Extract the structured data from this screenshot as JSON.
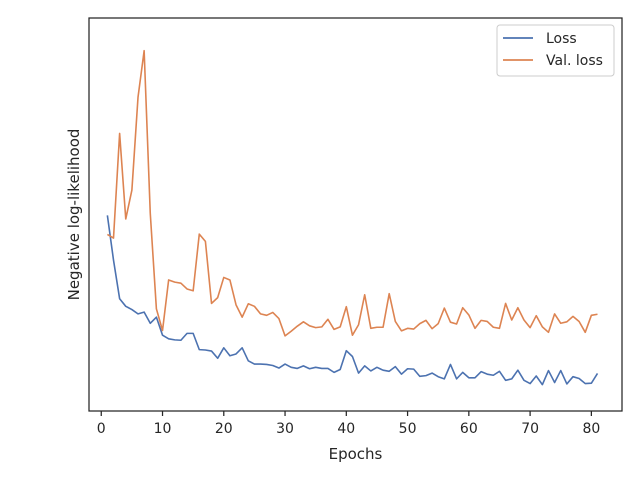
{
  "chart_data": {
    "type": "line",
    "title": "",
    "xlabel": "Epochs",
    "ylabel": "Negative log-likelihood",
    "xlim": [
      -2,
      85
    ],
    "ylim": [
      0,
      1
    ],
    "xticks": [
      0,
      10,
      20,
      30,
      40,
      50,
      60,
      70,
      80
    ],
    "yticks_shown": false,
    "grid": false,
    "legend_position": "top-right",
    "series": [
      {
        "name": "Loss",
        "color": "#4c72b0",
        "x": [
          1,
          2,
          3,
          4,
          5,
          6,
          7,
          8,
          9,
          10,
          11,
          12,
          13,
          14,
          15,
          16,
          17,
          18,
          19,
          20,
          21,
          22,
          23,
          24,
          25,
          26,
          27,
          28,
          29,
          30,
          31,
          32,
          33,
          34,
          35,
          36,
          37,
          38,
          39,
          40,
          41,
          42,
          43,
          44,
          45,
          46,
          47,
          48,
          49,
          50,
          51,
          52,
          53,
          54,
          55,
          56,
          57,
          58,
          59,
          60,
          61,
          62,
          63,
          64,
          65,
          66,
          67,
          68,
          69,
          70,
          71,
          72,
          73,
          74,
          75,
          76,
          77,
          78,
          79,
          80,
          81
        ],
        "y": [
          0.506,
          0.382,
          0.275,
          0.254,
          0.245,
          0.233,
          0.238,
          0.207,
          0.224,
          0.174,
          0.164,
          0.161,
          0.16,
          0.179,
          0.179,
          0.134,
          0.133,
          0.13,
          0.11,
          0.139,
          0.117,
          0.122,
          0.139,
          0.103,
          0.094,
          0.094,
          0.093,
          0.09,
          0.083,
          0.094,
          0.085,
          0.082,
          0.089,
          0.081,
          0.085,
          0.082,
          0.082,
          0.071,
          0.079,
          0.131,
          0.115,
          0.069,
          0.089,
          0.075,
          0.085,
          0.077,
          0.074,
          0.087,
          0.066,
          0.081,
          0.08,
          0.06,
          0.062,
          0.069,
          0.059,
          0.053,
          0.093,
          0.053,
          0.071,
          0.056,
          0.056,
          0.073,
          0.066,
          0.063,
          0.074,
          0.049,
          0.053,
          0.077,
          0.049,
          0.04,
          0.061,
          0.037,
          0.076,
          0.043,
          0.076,
          0.039,
          0.059,
          0.054,
          0.04,
          0.041,
          0.068
        ]
      },
      {
        "name": "Val. loss",
        "color": "#dd8452",
        "x": [
          1,
          2,
          3,
          4,
          5,
          6,
          7,
          8,
          9,
          10,
          11,
          12,
          13,
          14,
          15,
          16,
          17,
          18,
          19,
          20,
          21,
          22,
          23,
          24,
          25,
          26,
          27,
          28,
          29,
          30,
          31,
          32,
          33,
          34,
          35,
          36,
          37,
          38,
          39,
          40,
          41,
          42,
          43,
          44,
          45,
          46,
          47,
          48,
          49,
          50,
          51,
          52,
          53,
          54,
          55,
          56,
          57,
          58,
          59,
          60,
          61,
          62,
          63,
          64,
          65,
          66,
          67,
          68,
          69,
          70,
          71,
          72,
          73,
          74,
          75,
          76,
          77,
          78,
          79,
          80,
          81
        ],
        "y": [
          0.453,
          0.443,
          0.733,
          0.496,
          0.576,
          0.833,
          0.962,
          0.512,
          0.247,
          0.187,
          0.327,
          0.321,
          0.318,
          0.302,
          0.297,
          0.454,
          0.434,
          0.262,
          0.278,
          0.334,
          0.327,
          0.258,
          0.224,
          0.261,
          0.254,
          0.233,
          0.229,
          0.237,
          0.22,
          0.172,
          0.185,
          0.199,
          0.211,
          0.2,
          0.195,
          0.197,
          0.218,
          0.19,
          0.197,
          0.253,
          0.174,
          0.203,
          0.286,
          0.193,
          0.196,
          0.196,
          0.289,
          0.212,
          0.186,
          0.193,
          0.191,
          0.206,
          0.215,
          0.192,
          0.206,
          0.249,
          0.21,
          0.205,
          0.25,
          0.23,
          0.193,
          0.215,
          0.212,
          0.196,
          0.193,
          0.262,
          0.216,
          0.25,
          0.216,
          0.195,
          0.228,
          0.197,
          0.182,
          0.233,
          0.207,
          0.211,
          0.226,
          0.212,
          0.182,
          0.229,
          0.232
        ]
      }
    ]
  }
}
